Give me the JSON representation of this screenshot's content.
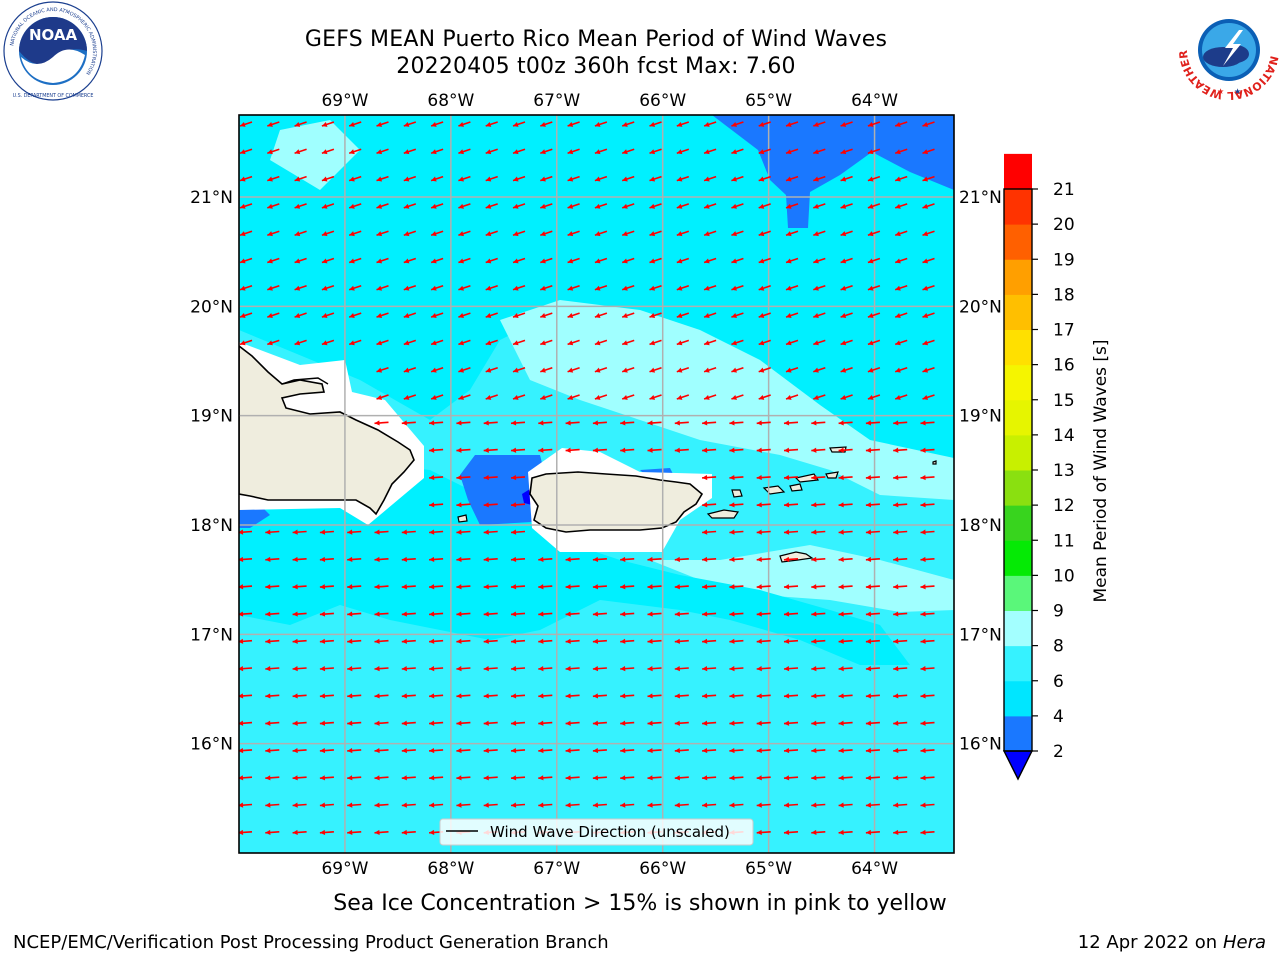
{
  "title": {
    "line1": "GEFS MEAN Puerto Rico Mean Period of Wind Waves",
    "line2": "20220405 t00z 360h fcst   Max: 7.60"
  },
  "logos": {
    "left": "noaa-logo",
    "right": "national-weather-service-logo",
    "left_text": "NOAA",
    "left_ring_text": "NATIONAL OCEANIC AND ATMOSPHERIC ADMINISTRATION",
    "left_bottom_text": "U.S. DEPARTMENT OF COMMERCE",
    "right_ring_text": "NATIONAL WEATHER SERVICE"
  },
  "map": {
    "longitude_labels": [
      "69°W",
      "68°W",
      "67°W",
      "66°W",
      "65°W",
      "64°W"
    ],
    "latitude_labels": [
      "16°N",
      "17°N",
      "18°N",
      "19°N",
      "20°N",
      "21°N"
    ],
    "lon_range": [
      -70.0,
      -63.25
    ],
    "lat_range": [
      15.0,
      21.75
    ],
    "legend_label": "Wind Wave Direction (unscaled)",
    "arrow_color": "#ff0000",
    "land_color": "#efedde",
    "grid": true
  },
  "colorbar": {
    "label": "Mean Period of Wind Waves [s]",
    "ticks": [
      "2",
      "4",
      "6",
      "8",
      "9",
      "10",
      "11",
      "12",
      "13",
      "14",
      "15",
      "16",
      "17",
      "18",
      "19",
      "20",
      "21"
    ],
    "bounds": [
      2,
      4,
      6,
      8,
      9,
      10,
      11,
      12,
      13,
      14,
      15,
      16,
      17,
      18,
      19,
      20,
      21
    ],
    "colors": [
      "#1a78ff",
      "#00e6ff",
      "#36f2ff",
      "#a3ffff",
      "#5af77a",
      "#05ea05",
      "#38d41e",
      "#8ae010",
      "#c8f000",
      "#e6f500",
      "#f5f500",
      "#ffe000",
      "#ffbf00",
      "#ff9f00",
      "#ff6000",
      "#ff3300",
      "#ff0000"
    ],
    "under_color": "#0000ff"
  },
  "field_colors": {
    "p2_4": "#1a78ff",
    "p4_6": "#00f0ff",
    "p6_8": "#36f2ff",
    "p8_9": "#a0ffff"
  },
  "footer": {
    "sea_ice_note": "Sea Ice Concentration > 15% is shown in pink to yellow",
    "left": "NCEP/EMC/Verification Post Processing Product Generation Branch",
    "right_prefix": "12 Apr 2022 on ",
    "right_host": "Hera"
  }
}
